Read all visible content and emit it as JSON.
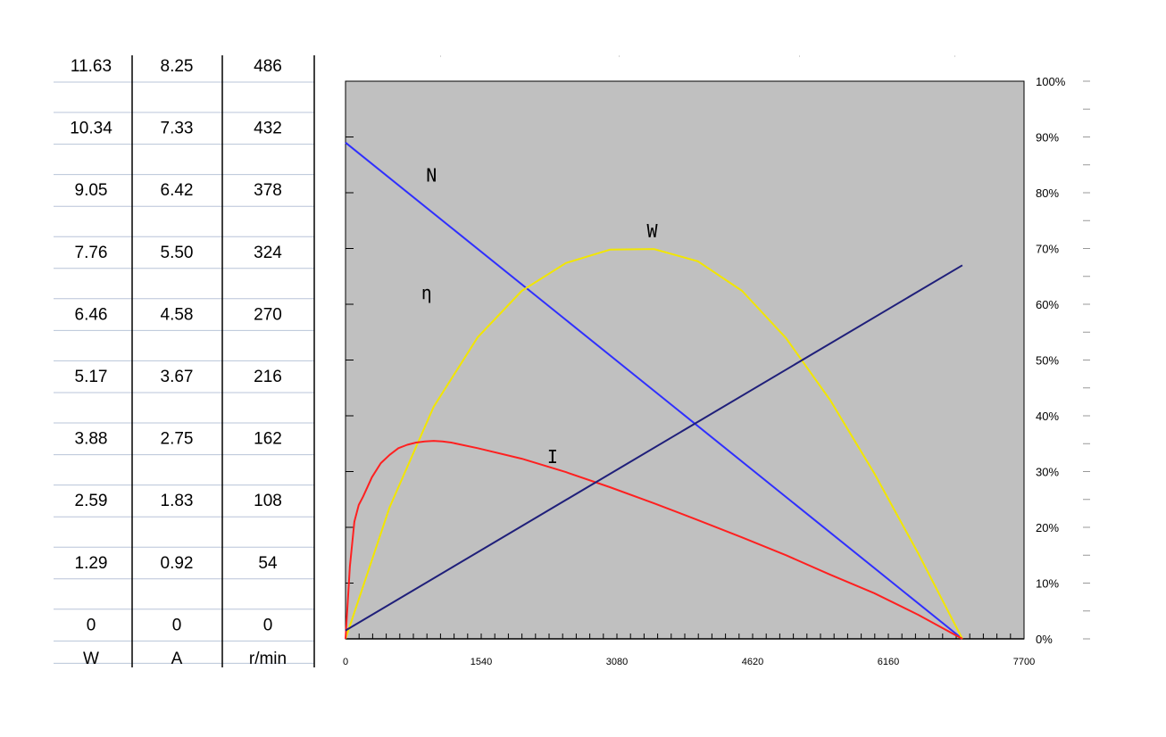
{
  "table": {
    "headers": [
      "W",
      "A",
      "r/min"
    ],
    "rows": [
      [
        "11.63",
        "8.25",
        "486"
      ],
      [
        "10.34",
        "7.33",
        "432"
      ],
      [
        "9.05",
        "6.42",
        "378"
      ],
      [
        "7.76",
        "5.50",
        "324"
      ],
      [
        "6.46",
        "4.58",
        "270"
      ],
      [
        "5.17",
        "3.67",
        "216"
      ],
      [
        "3.88",
        "2.75",
        "162"
      ],
      [
        "2.59",
        "1.83",
        "108"
      ],
      [
        "1.29",
        "0.92",
        "54"
      ],
      [
        "0",
        "0",
        "0"
      ]
    ]
  },
  "chart_data": {
    "type": "line",
    "title": "",
    "xlabel": "",
    "ylabel": "",
    "xlim": [
      0,
      7700
    ],
    "ylim": [
      0,
      100
    ],
    "x_ticks": [
      "0",
      "1540",
      "3080",
      "4620",
      "6160",
      "7700"
    ],
    "y_right_ticks": [
      "0%",
      "10%",
      "20%",
      "30%",
      "40%",
      "50%",
      "60%",
      "70%",
      "80%",
      "90%",
      "100%"
    ],
    "grid": false,
    "legend": "none",
    "plot_background": "#c0c0c0",
    "series": [
      {
        "name": "N",
        "color": "#2f2fff",
        "label_at": [
          975,
          82
        ],
        "x": [
          0,
          7000
        ],
        "y": [
          89,
          0
        ]
      },
      {
        "name": "W",
        "color": "#f2e600",
        "label_at": [
          3480,
          72
        ],
        "x": [
          0,
          500,
          1000,
          1500,
          2000,
          2500,
          3000,
          3500,
          4000,
          4500,
          5000,
          5500,
          6000,
          6500,
          7000
        ],
        "y": [
          0,
          23.6,
          41.6,
          54.1,
          62.4,
          67.4,
          69.8,
          69.9,
          67.7,
          62.4,
          53.9,
          42.8,
          29.7,
          15.3,
          0
        ]
      },
      {
        "name": "I",
        "color": "#ff2020",
        "label_at": [
          2350,
          31.5
        ],
        "x": [
          0,
          50,
          100,
          150,
          200,
          300,
          400,
          500,
          600,
          700,
          800,
          900,
          1000,
          1100,
          1200,
          1500,
          2000,
          2500,
          3000,
          3500,
          4000,
          4500,
          5000,
          5500,
          6000,
          6500,
          7000
        ],
        "y": [
          0,
          13,
          21,
          24,
          25.5,
          29,
          31.5,
          33,
          34.2,
          34.8,
          35.2,
          35.4,
          35.5,
          35.4,
          35.2,
          34.2,
          32.3,
          29.9,
          27.2,
          24.3,
          21.3,
          18.2,
          15.0,
          11.5,
          8.2,
          4.3,
          0
        ]
      },
      {
        "name": "η",
        "color": "#1f1f7a",
        "label_at": [
          920,
          61
        ],
        "x": [
          0,
          7000
        ],
        "y": [
          1.5,
          67
        ]
      }
    ]
  }
}
